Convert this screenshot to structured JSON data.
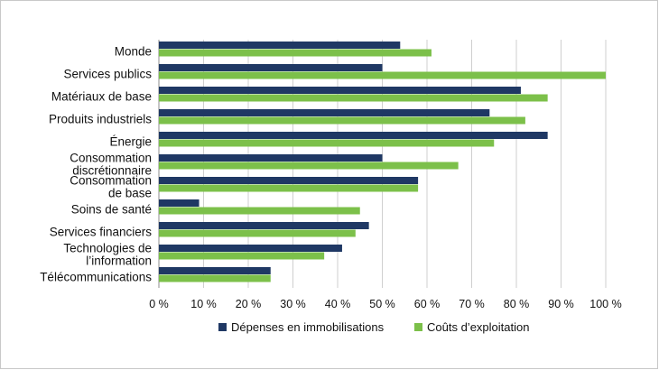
{
  "chart_data": {
    "type": "bar",
    "orientation": "horizontal",
    "categories": [
      [
        "Monde"
      ],
      [
        "Services publics"
      ],
      [
        "Matériaux de base"
      ],
      [
        "Produits industriels"
      ],
      [
        "Énergie"
      ],
      [
        "Consommation",
        "discrétionnaire"
      ],
      [
        "Consommation",
        "de base"
      ],
      [
        "Soins de santé"
      ],
      [
        "Services financiers"
      ],
      [
        "Technologies de",
        "l’information"
      ],
      [
        "Télécommunications"
      ]
    ],
    "series": [
      {
        "name": "Dépenses en immobilisations",
        "color": "#1f3864",
        "values": [
          54,
          50,
          81,
          74,
          87,
          50,
          58,
          9,
          47,
          41,
          25
        ]
      },
      {
        "name": "Coûts d’exploitation",
        "color": "#7cc04a",
        "values": [
          61,
          100,
          87,
          82,
          75,
          67,
          58,
          45,
          44,
          37,
          25
        ]
      }
    ],
    "xlim": [
      0,
      100
    ],
    "xticks": [
      0,
      10,
      20,
      30,
      40,
      50,
      60,
      70,
      80,
      90,
      100
    ],
    "xtick_labels": [
      "0 %",
      "10 %",
      "20 %",
      "30 %",
      "40 %",
      "50 %",
      "60 %",
      "70 %",
      "80 %",
      "90 %",
      "100 %"
    ],
    "grid": true,
    "legend_position": "bottom"
  }
}
